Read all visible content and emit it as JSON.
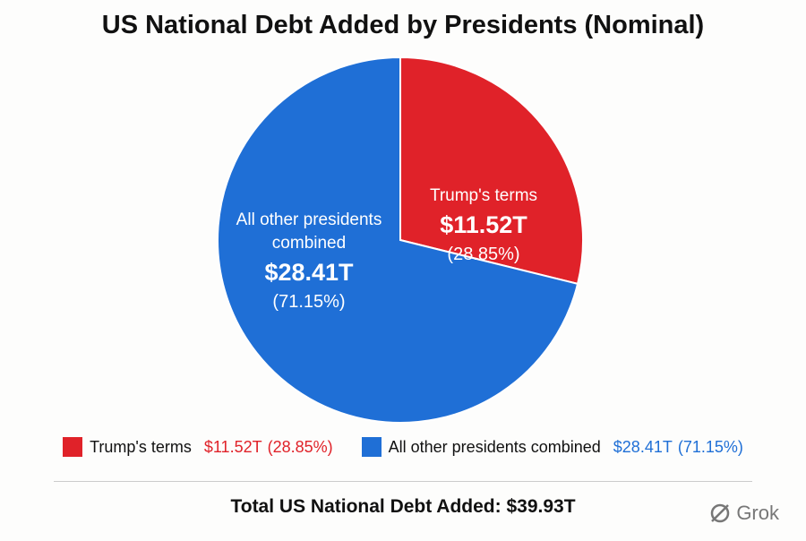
{
  "chart_data": {
    "type": "pie",
    "title": "US National Debt Added by Presidents (Nominal)",
    "slices": [
      {
        "name": "Trump's terms",
        "color": "#e02229",
        "value": 11.52,
        "value_label": "$11.52T",
        "percent_label": "(28.85%)"
      },
      {
        "name": "All other presidents combined",
        "color": "#1f6fd6",
        "value": 28.41,
        "value_label": "$28.41T",
        "percent_label": "(71.15%)"
      }
    ],
    "total_text": "Total US National Debt Added: $39.93T",
    "watermark": "Grok"
  }
}
